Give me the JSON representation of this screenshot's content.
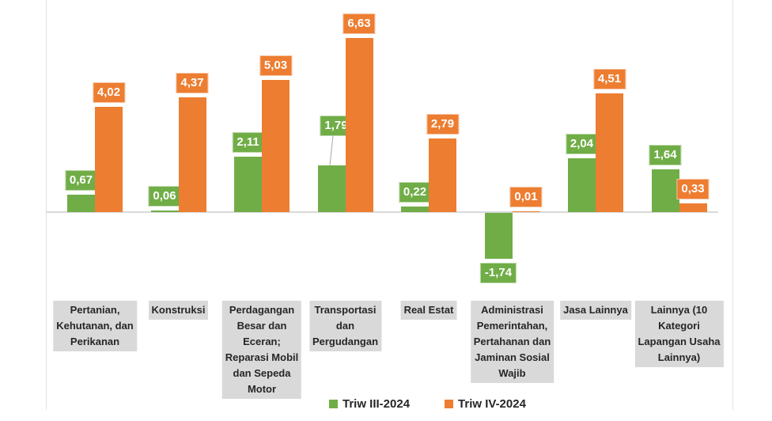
{
  "chart_data": {
    "type": "bar",
    "title": "",
    "xlabel": "",
    "ylabel": "",
    "grid": false,
    "legend_position": "bottom",
    "ylim": [
      -2.5,
      7.6
    ],
    "decimal_separator": ",",
    "categories": [
      "Pertanian, Kehutanan, dan Perikanan",
      "Konstruksi",
      "Perdagangan Besar dan Eceran; Reparasi Mobil dan Sepeda Motor",
      "Transportasi dan Pergudangan",
      "Real Estat",
      "Administrasi Pemerintahan, Pertahanan dan Jaminan Sosial Wajib",
      "Jasa Lainnya",
      "Lainnya (10 Kategori Lapangan Usaha Lainnya)"
    ],
    "category_lines": [
      [
        "Pertanian,",
        "Kehutanan, dan",
        "Perikanan"
      ],
      [
        "Konstruksi"
      ],
      [
        "Perdagangan",
        "Besar dan",
        "Eceran;",
        "Reparasi Mobil",
        "dan Sepeda",
        "Motor"
      ],
      [
        "Transportasi",
        "dan",
        "Pergudangan"
      ],
      [
        "Real Estat"
      ],
      [
        "Administrasi",
        "Pemerintahan,",
        "Pertahanan dan",
        "Jaminan Sosial",
        "Wajib"
      ],
      [
        "Jasa Lainnya"
      ],
      [
        "Lainnya (10",
        "Kategori",
        "Lapangan Usaha",
        "Lainnya)"
      ]
    ],
    "series": [
      {
        "name": "Triw III-2024",
        "color": "#70AD47",
        "values": [
          0.67,
          0.06,
          2.11,
          1.79,
          0.22,
          -1.74,
          2.04,
          1.64
        ],
        "labels": [
          "0,67",
          "0,06",
          "2,11",
          "1,79",
          "0,22",
          "-1,74",
          "2,04",
          "1,64"
        ]
      },
      {
        "name": "Triw IV-2024",
        "color": "#ED7D31",
        "values": [
          4.02,
          4.37,
          5.03,
          6.63,
          2.79,
          0.01,
          4.51,
          0.33
        ],
        "labels": [
          "4,02",
          "4,37",
          "5,03",
          "6,63",
          "2,79",
          "0,01",
          "4,51",
          "0,33"
        ]
      }
    ],
    "label_offsets": [
      {
        "series_index": 0,
        "point_index": 3,
        "dx": 6,
        "dy": -32,
        "leader_line": true
      }
    ]
  },
  "legend": {
    "items": [
      {
        "label": "Triw III-2024",
        "color": "#70AD47"
      },
      {
        "label": "Triw IV-2024",
        "color": "#ED7D31"
      }
    ]
  },
  "colors": {
    "series_1": "#70AD47",
    "series_2": "#ED7D31",
    "axis_line": "#D9D9D9",
    "plot_border": "#E2E2E2",
    "category_label_bg": "#D9D9D9",
    "text_dark": "#262626",
    "data_label_text": "#FFFFFF",
    "leader_line": "#A6A6A6",
    "background": "#FFFFFF"
  }
}
